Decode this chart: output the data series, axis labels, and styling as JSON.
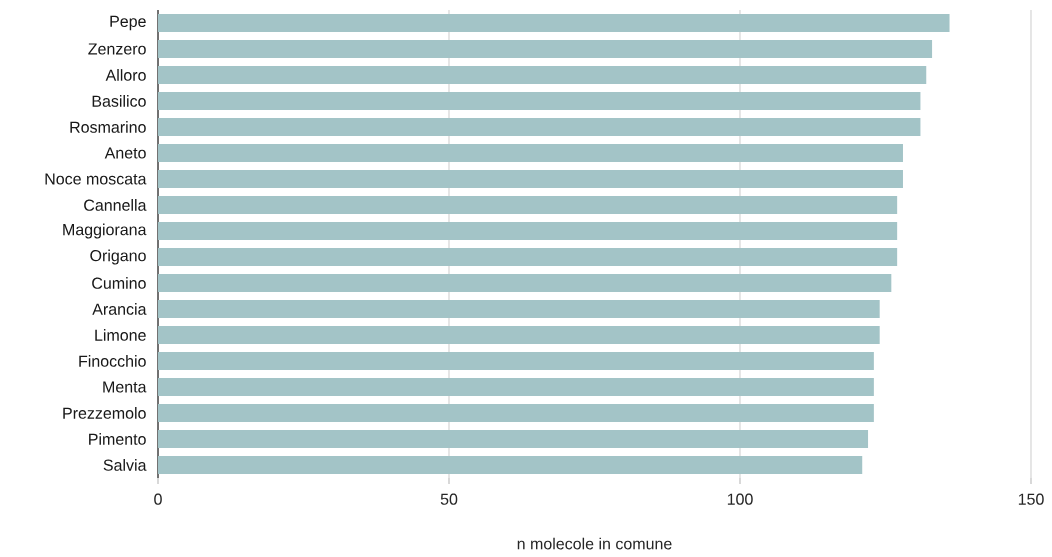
{
  "chart_data": {
    "type": "bar",
    "orientation": "horizontal",
    "xlabel": "n molecole in comune",
    "categories": [
      "Pepe",
      "Zenzero",
      "Alloro",
      "Basilico",
      "Rosmarino",
      "Aneto",
      "Noce moscata",
      "Cannella",
      "Maggiorana",
      "Origano",
      "Cumino",
      "Arancia",
      "Limone",
      "Finocchio",
      "Menta",
      "Prezzemolo",
      "Pimento",
      "Salvia"
    ],
    "values": [
      136,
      133,
      132,
      131,
      131,
      128,
      128,
      127,
      127,
      127,
      126,
      124,
      124,
      123,
      123,
      123,
      122,
      121
    ],
    "color": "#a3c4c7",
    "xlim": [
      0,
      150
    ],
    "xticks": [
      0,
      50,
      100,
      150
    ],
    "grid": "x"
  }
}
